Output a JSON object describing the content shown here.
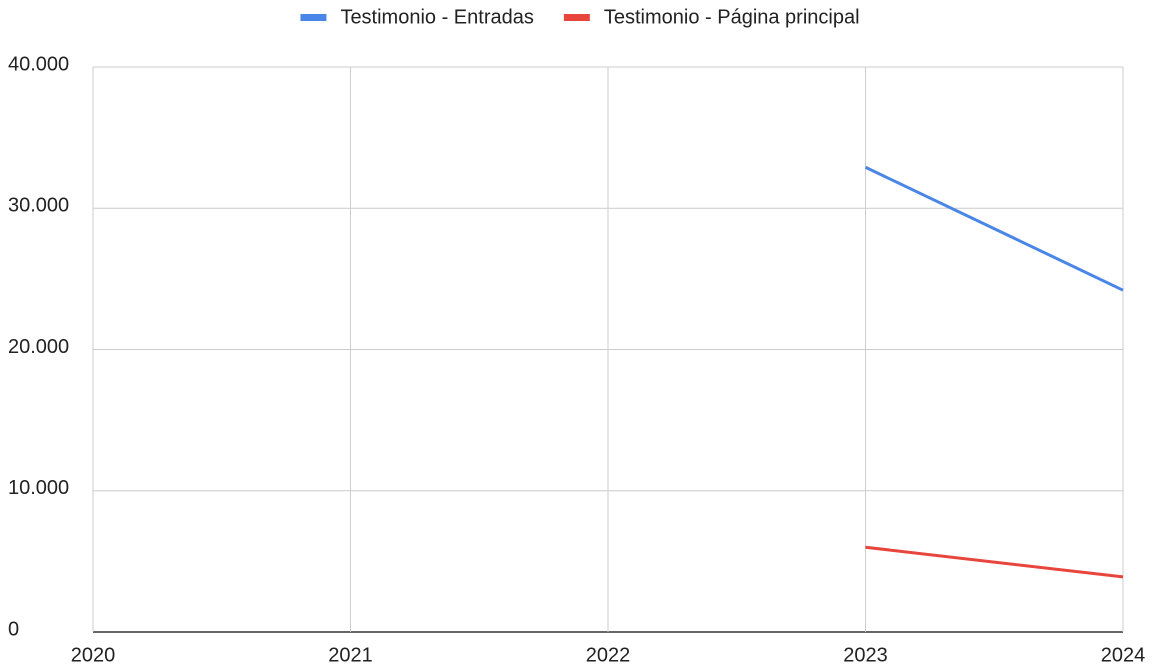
{
  "chart_data": {
    "type": "line",
    "x": [
      2020,
      2021,
      2022,
      2023,
      2024
    ],
    "series": [
      {
        "name": "Testimonio - Entradas",
        "color": "#4a86e8",
        "values": [
          null,
          null,
          null,
          32900,
          24200
        ]
      },
      {
        "name": "Testimonio - Página principal",
        "color": "#e8453c",
        "values": [
          null,
          null,
          null,
          6000,
          3900
        ]
      }
    ],
    "xlim": [
      2020,
      2024
    ],
    "xticks": [
      2020,
      2021,
      2022,
      2023,
      2024
    ],
    "ylim": [
      0,
      40000
    ],
    "yticks": [
      0,
      {
        "value": 10000,
        "label": "10.000"
      },
      {
        "value": 20000,
        "label": "20.000"
      },
      {
        "value": 30000,
        "label": "30.000"
      },
      {
        "value": 40000,
        "label": "40.000"
      }
    ],
    "grid": true,
    "legend": "top"
  }
}
